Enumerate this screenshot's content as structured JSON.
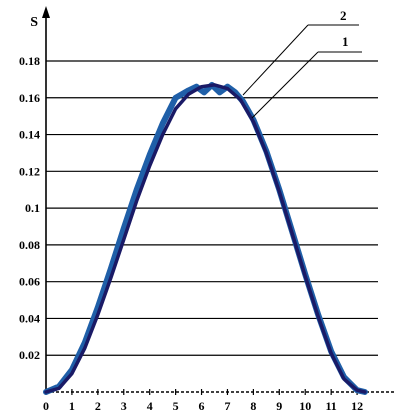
{
  "chart_data": {
    "type": "line",
    "title": "",
    "xlabel": "",
    "ylabel": "S",
    "xlim": [
      0,
      13
    ],
    "ylim": [
      0,
      0.18
    ],
    "x_ticks": [
      "0",
      "1",
      "2",
      "3",
      "4",
      "5",
      "6",
      "7",
      "8",
      "9",
      "10",
      "11",
      "12"
    ],
    "y_ticks": [
      "0.02",
      "0.04",
      "0.06",
      "0.08",
      "0.1",
      "0.12",
      "0.14",
      "0.16",
      "0.18"
    ],
    "grid": "horizontal",
    "series": [
      {
        "name": "1",
        "color": "#1a1a66",
        "x": [
          0,
          0.5,
          1,
          1.5,
          2,
          2.5,
          3,
          3.5,
          4,
          4.5,
          5,
          5.5,
          6,
          6.5,
          7,
          7.5,
          8,
          8.5,
          9,
          9.5,
          10,
          10.5,
          11,
          11.5,
          12,
          12.3
        ],
        "y": [
          0,
          0.002,
          0.01,
          0.024,
          0.042,
          0.062,
          0.083,
          0.104,
          0.123,
          0.14,
          0.154,
          0.162,
          0.166,
          0.167,
          0.165,
          0.159,
          0.147,
          0.13,
          0.109,
          0.086,
          0.063,
          0.041,
          0.021,
          0.007,
          0.001,
          0
        ]
      },
      {
        "name": "2",
        "color": "#1f5fa8",
        "x": [
          0,
          0.5,
          1,
          1.5,
          2,
          2.5,
          3,
          3.5,
          4,
          4.5,
          5,
          5.5,
          5.8,
          6.1,
          6.4,
          6.7,
          7,
          7.3,
          7.6,
          8,
          8.5,
          9,
          9.5,
          10,
          10.5,
          11,
          11.5,
          12,
          12.3
        ],
        "y": [
          0,
          0.003,
          0.012,
          0.027,
          0.046,
          0.067,
          0.089,
          0.11,
          0.129,
          0.146,
          0.16,
          0.164,
          0.166,
          0.163,
          0.167,
          0.163,
          0.166,
          0.163,
          0.158,
          0.148,
          0.131,
          0.11,
          0.087,
          0.064,
          0.042,
          0.022,
          0.008,
          0.001,
          0
        ]
      }
    ],
    "callouts": [
      {
        "label": "2",
        "series": "2"
      },
      {
        "label": "1",
        "series": "1"
      }
    ]
  }
}
